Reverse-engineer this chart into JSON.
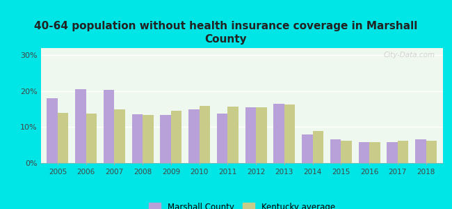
{
  "title": "40-64 population without health insurance coverage in Marshall\nCounty",
  "years": [
    2005,
    2006,
    2007,
    2008,
    2009,
    2010,
    2011,
    2012,
    2013,
    2014,
    2015,
    2016,
    2017,
    2018
  ],
  "marshall_county": [
    18.0,
    20.5,
    20.3,
    13.5,
    13.3,
    15.0,
    13.7,
    15.5,
    16.5,
    8.0,
    6.5,
    5.8,
    5.8,
    6.5
  ],
  "kentucky_avg": [
    14.0,
    13.8,
    15.0,
    13.3,
    14.5,
    16.0,
    15.8,
    15.5,
    16.3,
    9.0,
    6.3,
    5.8,
    6.2,
    6.3
  ],
  "marshall_color": "#b8a0d8",
  "kentucky_color": "#c8cc88",
  "background_color": "#00e5e5",
  "plot_bg": "#eef8ee",
  "ylim": [
    0,
    32
  ],
  "yticks": [
    0,
    10,
    20,
    30
  ],
  "ytick_labels": [
    "0%",
    "10%",
    "20%",
    "30%"
  ],
  "title_fontsize": 11,
  "legend_label_marshall": "Marshall County",
  "legend_label_kentucky": "Kentucky average",
  "bar_width": 0.38
}
